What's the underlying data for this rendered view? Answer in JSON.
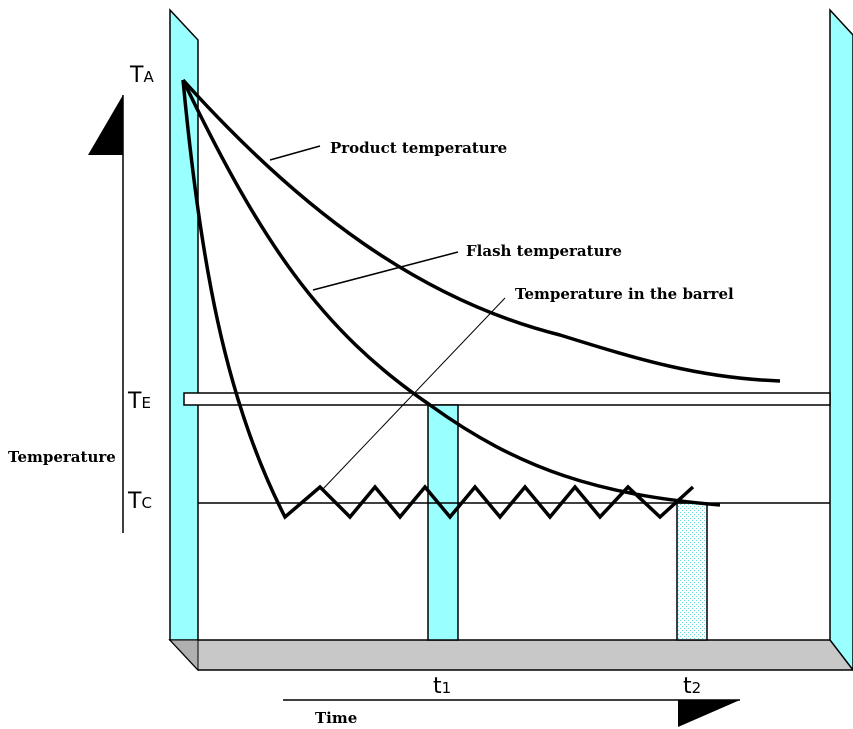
{
  "colors": {
    "panel_cyan": "#99ffff",
    "floor_gray": "#c8c8c8",
    "line": "#000000"
  },
  "y_axis": {
    "label": "Temperature",
    "levels": [
      {
        "main": "T",
        "sub": "A"
      },
      {
        "main": "T",
        "sub": "E"
      },
      {
        "main": "T",
        "sub": "C"
      }
    ]
  },
  "x_axis": {
    "label": "Time",
    "marks": [
      {
        "main": "t",
        "sub": "1"
      },
      {
        "main": "t",
        "sub": "2"
      }
    ]
  },
  "curves": [
    {
      "label": "Product temperature"
    },
    {
      "label": "Flash temperature"
    },
    {
      "label": "Temperature in the barrel"
    }
  ]
}
